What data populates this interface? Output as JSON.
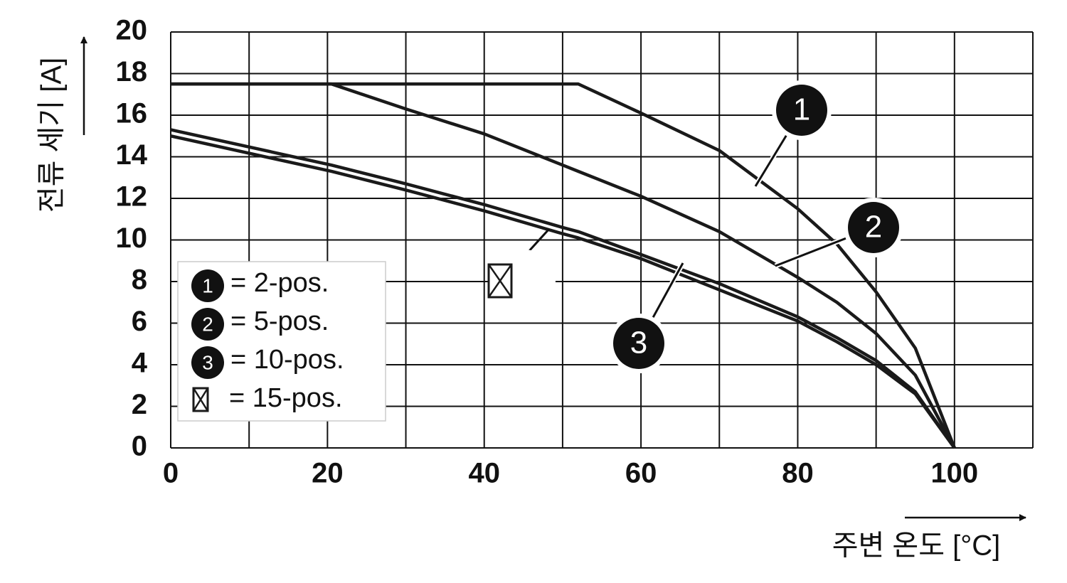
{
  "chart_data": {
    "type": "line",
    "x_label": "주변 온도 [°C]",
    "y_label": "전류 세기 [A]",
    "x": [
      0,
      20.5,
      30,
      40,
      50,
      52,
      60,
      70,
      80,
      85,
      90,
      95,
      100
    ],
    "series": [
      {
        "name": "= 2-pos.",
        "marker": "1",
        "color": "#1a1a1a",
        "values": [
          17.5,
          17.5,
          17.5,
          17.5,
          17.5,
          17.5,
          16.1,
          14.3,
          11.5,
          9.8,
          7.5,
          4.8,
          0
        ]
      },
      {
        "name": "= 5-pos.",
        "marker": "2",
        "color": "#1a1a1a",
        "values": [
          17.5,
          17.5,
          16.3,
          15.1,
          13.6,
          13.3,
          12.1,
          10.4,
          8.2,
          7.0,
          5.5,
          3.5,
          0
        ]
      },
      {
        "name": "= 10-pos.",
        "marker": "3",
        "color": "#1a1a1a",
        "values": [
          15.3,
          13.6,
          12.7,
          11.7,
          10.6,
          10.4,
          9.3,
          7.9,
          6.3,
          5.3,
          4.2,
          2.7,
          0
        ]
      },
      {
        "name": "= 15-pos.",
        "symbol": "crossed-box",
        "color": "#1a1a1a",
        "values": [
          15.0,
          13.3,
          12.4,
          11.4,
          10.3,
          10.1,
          9.1,
          7.6,
          6.1,
          5.1,
          4.0,
          2.6,
          0
        ]
      }
    ],
    "xlim": [
      0,
      110
    ],
    "xticks": [
      0,
      20,
      40,
      60,
      80,
      100
    ],
    "xgrid": [
      0,
      10,
      20,
      30,
      40,
      50,
      60,
      70,
      80,
      90,
      100,
      110
    ],
    "ylim": [
      0,
      20
    ],
    "yticks": [
      0,
      2,
      4,
      6,
      8,
      10,
      12,
      14,
      16,
      18,
      20
    ],
    "grid": true
  }
}
